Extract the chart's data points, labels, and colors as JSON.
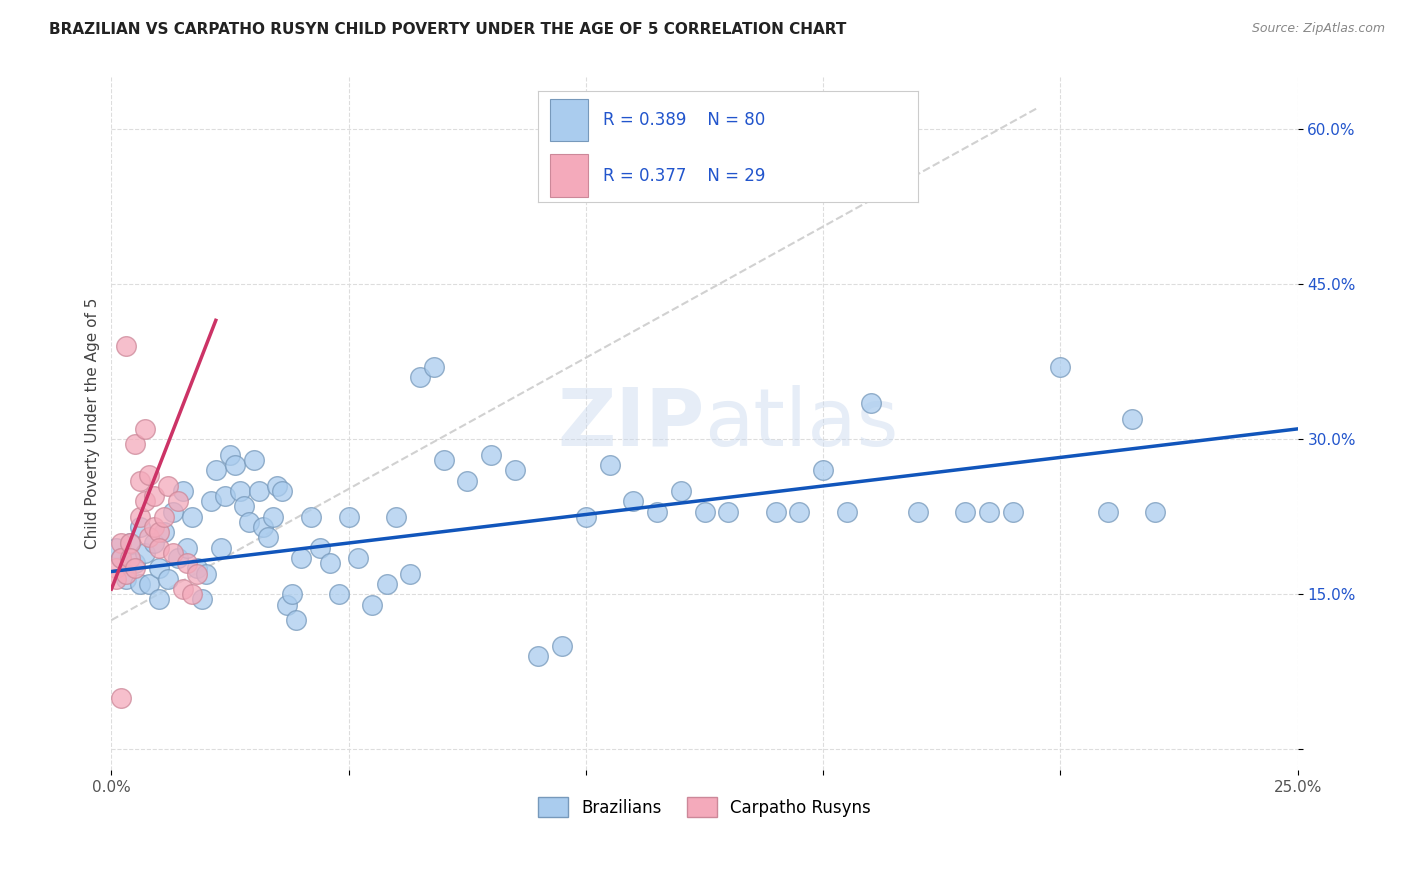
{
  "title": "BRAZILIAN VS CARPATHO RUSYN CHILD POVERTY UNDER THE AGE OF 5 CORRELATION CHART",
  "source": "Source: ZipAtlas.com",
  "ylabel": "Child Poverty Under the Age of 5",
  "xlim": [
    0.0,
    0.25
  ],
  "ylim": [
    -0.02,
    0.65
  ],
  "background_color": "#ffffff",
  "grid_color": "#dddddd",
  "watermark": "ZIPatlas",
  "brazil_color": "#aaccee",
  "brazil_edge": "#7799bb",
  "rusyn_color": "#f4aabb",
  "rusyn_edge": "#cc8899",
  "brazil_line_color": "#1155bb",
  "rusyn_line_color": "#cc3366",
  "gray_line_color": "#cccccc",
  "legend_text_color": "#2255cc",
  "ytick_color": "#2255cc",
  "xtick_color": "#555555",
  "brazil_R": "0.389",
  "brazil_N": "80",
  "rusyn_R": "0.377",
  "rusyn_N": "29",
  "brazil_x": [
    0.001,
    0.002,
    0.003,
    0.004,
    0.005,
    0.006,
    0.006,
    0.007,
    0.008,
    0.009,
    0.01,
    0.01,
    0.011,
    0.012,
    0.013,
    0.014,
    0.015,
    0.016,
    0.017,
    0.018,
    0.019,
    0.02,
    0.021,
    0.022,
    0.023,
    0.024,
    0.025,
    0.026,
    0.027,
    0.028,
    0.029,
    0.03,
    0.031,
    0.032,
    0.033,
    0.034,
    0.035,
    0.036,
    0.037,
    0.038,
    0.039,
    0.04,
    0.042,
    0.044,
    0.046,
    0.048,
    0.05,
    0.052,
    0.055,
    0.058,
    0.06,
    0.063,
    0.065,
    0.068,
    0.07,
    0.075,
    0.08,
    0.085,
    0.09,
    0.095,
    0.1,
    0.105,
    0.11,
    0.115,
    0.12,
    0.125,
    0.13,
    0.14,
    0.15,
    0.16,
    0.17,
    0.18,
    0.19,
    0.2,
    0.21,
    0.215,
    0.22,
    0.185,
    0.155,
    0.145
  ],
  "brazil_y": [
    0.195,
    0.185,
    0.165,
    0.2,
    0.18,
    0.16,
    0.215,
    0.19,
    0.16,
    0.2,
    0.175,
    0.145,
    0.21,
    0.165,
    0.23,
    0.185,
    0.25,
    0.195,
    0.225,
    0.175,
    0.145,
    0.17,
    0.24,
    0.27,
    0.195,
    0.245,
    0.285,
    0.275,
    0.25,
    0.235,
    0.22,
    0.28,
    0.25,
    0.215,
    0.205,
    0.225,
    0.255,
    0.25,
    0.14,
    0.15,
    0.125,
    0.185,
    0.225,
    0.195,
    0.18,
    0.15,
    0.225,
    0.185,
    0.14,
    0.16,
    0.225,
    0.17,
    0.36,
    0.37,
    0.28,
    0.26,
    0.285,
    0.27,
    0.09,
    0.1,
    0.225,
    0.275,
    0.24,
    0.23,
    0.25,
    0.23,
    0.23,
    0.23,
    0.27,
    0.335,
    0.23,
    0.23,
    0.23,
    0.37,
    0.23,
    0.32,
    0.23,
    0.23,
    0.23,
    0.23
  ],
  "rusyn_x": [
    0.001,
    0.001,
    0.002,
    0.002,
    0.003,
    0.003,
    0.004,
    0.004,
    0.005,
    0.005,
    0.006,
    0.006,
    0.007,
    0.007,
    0.008,
    0.008,
    0.009,
    0.009,
    0.01,
    0.01,
    0.011,
    0.012,
    0.013,
    0.014,
    0.015,
    0.016,
    0.017,
    0.018,
    0.002
  ],
  "rusyn_y": [
    0.175,
    0.165,
    0.2,
    0.185,
    0.39,
    0.17,
    0.2,
    0.185,
    0.295,
    0.175,
    0.26,
    0.225,
    0.31,
    0.24,
    0.265,
    0.205,
    0.245,
    0.215,
    0.21,
    0.195,
    0.225,
    0.255,
    0.19,
    0.24,
    0.155,
    0.18,
    0.15,
    0.17,
    0.05
  ],
  "rusyn_line_x0": 0.0,
  "rusyn_line_y0": 0.155,
  "rusyn_line_x1": 0.022,
  "rusyn_line_y1": 0.415,
  "gray_line_x0": 0.0,
  "gray_line_y0": 0.125,
  "gray_line_x1": 0.195,
  "gray_line_y1": 0.62,
  "brazil_line_x0": 0.0,
  "brazil_line_y0": 0.172,
  "brazil_line_x1": 0.25,
  "brazil_line_y1": 0.31
}
